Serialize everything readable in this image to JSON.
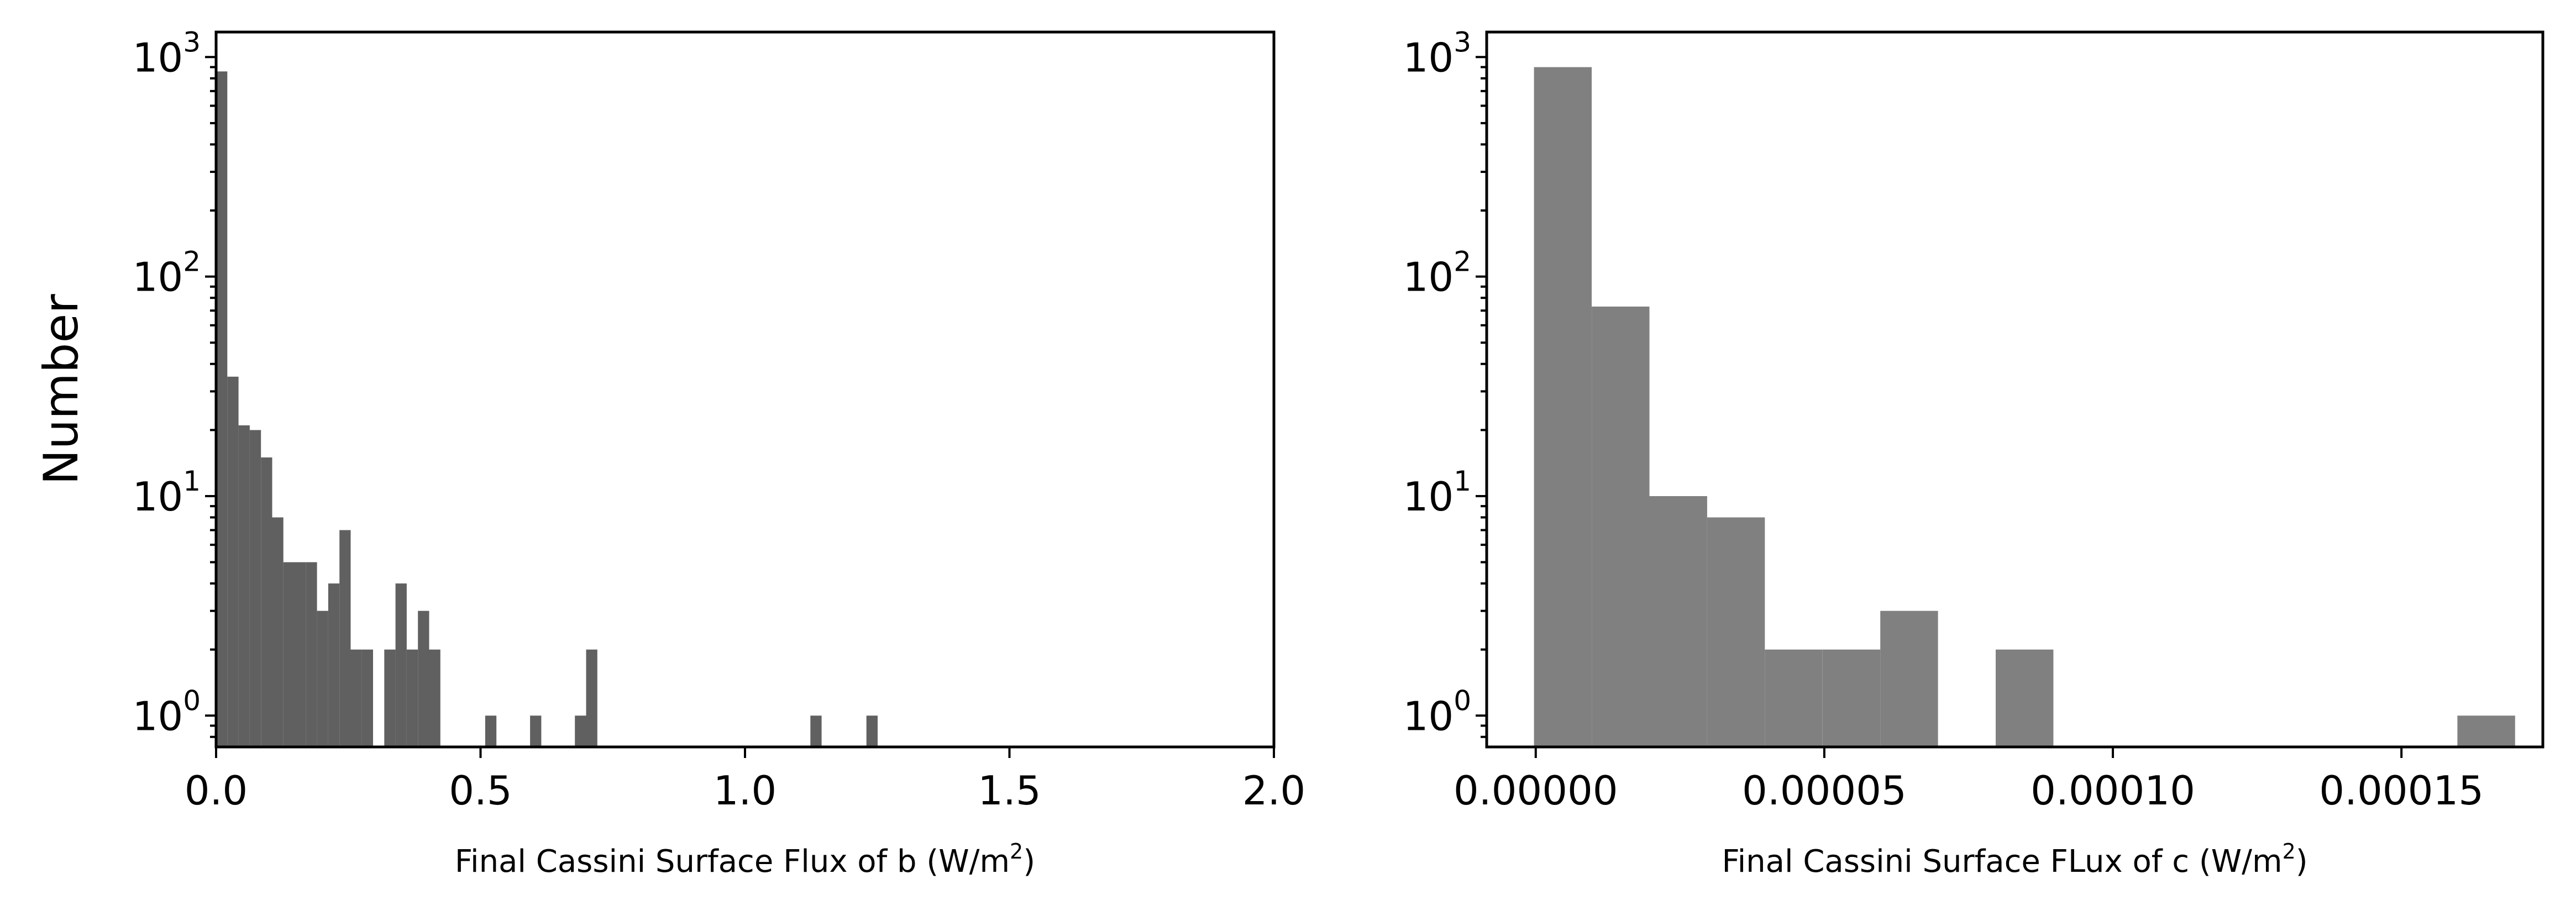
{
  "chart_data": [
    {
      "type": "histogram",
      "xlabel": "Final Cassini Surface Flux of b (W/m2)",
      "xlabel_parts": {
        "pre": "Final Cassini Surface Flux of b (W/m",
        "sup": "2",
        "post": ")"
      },
      "ylabel": "Number",
      "xlim": [
        0.0,
        2.0
      ],
      "y_scale": "log",
      "ylim": [
        0.72,
        1300
      ],
      "bar_color": "#606060",
      "xticks": [
        {
          "value": 0.0,
          "label": "0.0"
        },
        {
          "value": 0.5,
          "label": "0.5"
        },
        {
          "value": 1.0,
          "label": "1.0"
        },
        {
          "value": 1.5,
          "label": "1.5"
        },
        {
          "value": 2.0,
          "label": "2.0"
        }
      ],
      "yticks": [
        {
          "value": 1,
          "base": "10",
          "exp": "0"
        },
        {
          "value": 10,
          "base": "10",
          "exp": "1"
        },
        {
          "value": 100,
          "base": "10",
          "exp": "2"
        },
        {
          "value": 1000,
          "base": "10",
          "exp": "3"
        }
      ],
      "bins": [
        {
          "x0": 0.0,
          "x1": 0.0212,
          "count": 860
        },
        {
          "x0": 0.0212,
          "x1": 0.0424,
          "count": 35
        },
        {
          "x0": 0.0424,
          "x1": 0.0636,
          "count": 21
        },
        {
          "x0": 0.0636,
          "x1": 0.0848,
          "count": 20
        },
        {
          "x0": 0.0848,
          "x1": 0.106,
          "count": 15
        },
        {
          "x0": 0.106,
          "x1": 0.1272,
          "count": 8
        },
        {
          "x0": 0.1272,
          "x1": 0.1484,
          "count": 5
        },
        {
          "x0": 0.1484,
          "x1": 0.1696,
          "count": 5
        },
        {
          "x0": 0.1696,
          "x1": 0.1908,
          "count": 5
        },
        {
          "x0": 0.1908,
          "x1": 0.212,
          "count": 3
        },
        {
          "x0": 0.212,
          "x1": 0.2332,
          "count": 4
        },
        {
          "x0": 0.2332,
          "x1": 0.2544,
          "count": 7
        },
        {
          "x0": 0.2544,
          "x1": 0.2756,
          "count": 2
        },
        {
          "x0": 0.2756,
          "x1": 0.2968,
          "count": 2
        },
        {
          "x0": 0.318,
          "x1": 0.3392,
          "count": 2
        },
        {
          "x0": 0.3392,
          "x1": 0.3604,
          "count": 4
        },
        {
          "x0": 0.3604,
          "x1": 0.3816,
          "count": 2
        },
        {
          "x0": 0.3816,
          "x1": 0.4028,
          "count": 3
        },
        {
          "x0": 0.4028,
          "x1": 0.424,
          "count": 2
        },
        {
          "x0": 0.5088,
          "x1": 0.53,
          "count": 1
        },
        {
          "x0": 0.5936,
          "x1": 0.6148,
          "count": 1
        },
        {
          "x0": 0.6784,
          "x1": 0.6996,
          "count": 1
        },
        {
          "x0": 0.6996,
          "x1": 0.7208,
          "count": 2
        },
        {
          "x0": 1.1236,
          "x1": 1.1448,
          "count": 1
        },
        {
          "x0": 1.2296,
          "x1": 1.2508,
          "count": 1
        }
      ]
    },
    {
      "type": "histogram",
      "xlabel": "Final Cassini Surface FLux of c (W/m2)",
      "xlabel_parts": {
        "pre": "Final Cassini Surface FLux of c (W/m",
        "sup": "2",
        "post": ")"
      },
      "ylabel": "",
      "xlim": [
        -8.5e-06,
        0.0001745
      ],
      "y_scale": "log",
      "ylim": [
        0.72,
        1300
      ],
      "bar_color": "#808080",
      "xticks": [
        {
          "value": 0.0,
          "label": "0.00000"
        },
        {
          "value": 5e-05,
          "label": "0.00005"
        },
        {
          "value": 0.0001,
          "label": "0.00010"
        },
        {
          "value": 0.00015,
          "label": "0.00015"
        }
      ],
      "yticks": [
        {
          "value": 1,
          "base": "10",
          "exp": "0"
        },
        {
          "value": 10,
          "base": "10",
          "exp": "1"
        },
        {
          "value": 100,
          "base": "10",
          "exp": "2"
        },
        {
          "value": 1000,
          "base": "10",
          "exp": "3"
        }
      ],
      "bins": [
        {
          "x0": -3e-07,
          "x1": 9.7e-06,
          "count": 900
        },
        {
          "x0": 9.7e-06,
          "x1": 1.97e-05,
          "count": 73
        },
        {
          "x0": 1.97e-05,
          "x1": 2.97e-05,
          "count": 10
        },
        {
          "x0": 2.97e-05,
          "x1": 3.97e-05,
          "count": 8
        },
        {
          "x0": 3.97e-05,
          "x1": 4.97e-05,
          "count": 2
        },
        {
          "x0": 4.97e-05,
          "x1": 5.97e-05,
          "count": 2
        },
        {
          "x0": 5.97e-05,
          "x1": 6.97e-05,
          "count": 3
        },
        {
          "x0": 7.97e-05,
          "x1": 8.97e-05,
          "count": 2
        },
        {
          "x0": 0.0001597,
          "x1": 0.0001697,
          "count": 1
        }
      ]
    }
  ]
}
